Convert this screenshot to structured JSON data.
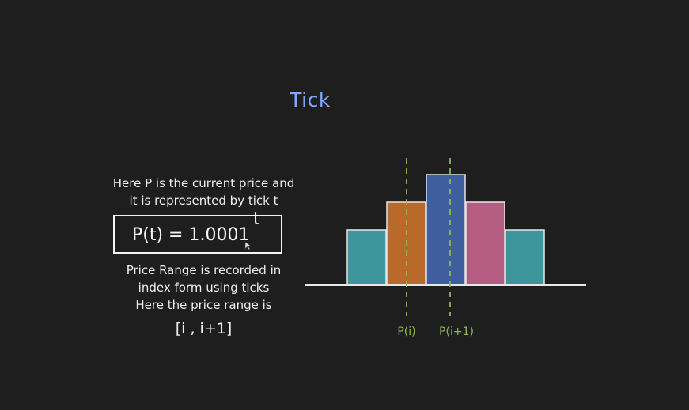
{
  "title": "Tick",
  "intro_lines": [
    "Here P is the current price and",
    "it is represented by tick t"
  ],
  "formula": {
    "base": "P(t) = 1.0001",
    "exponent": "t"
  },
  "range_note_lines": [
    "Price Range is recorded in",
    "index form using ticks",
    "Here the price range is"
  ],
  "range_value": "[i , i+1]",
  "markers": [
    {
      "label": "P(i)"
    },
    {
      "label": "P(i+1)"
    }
  ],
  "bars": [
    {
      "value": 2,
      "color": "#3c969c"
    },
    {
      "value": 3,
      "color": "#b96a2b"
    },
    {
      "value": 4,
      "color": "#3f5e9d"
    },
    {
      "value": 3,
      "color": "#b45c82"
    },
    {
      "value": 2,
      "color": "#3c969c"
    }
  ],
  "colors": {
    "marker_line": "#93b84a",
    "baseline": "#e8e8e8",
    "title": "#7fa7ff"
  },
  "cursor": "cursor-icon"
}
